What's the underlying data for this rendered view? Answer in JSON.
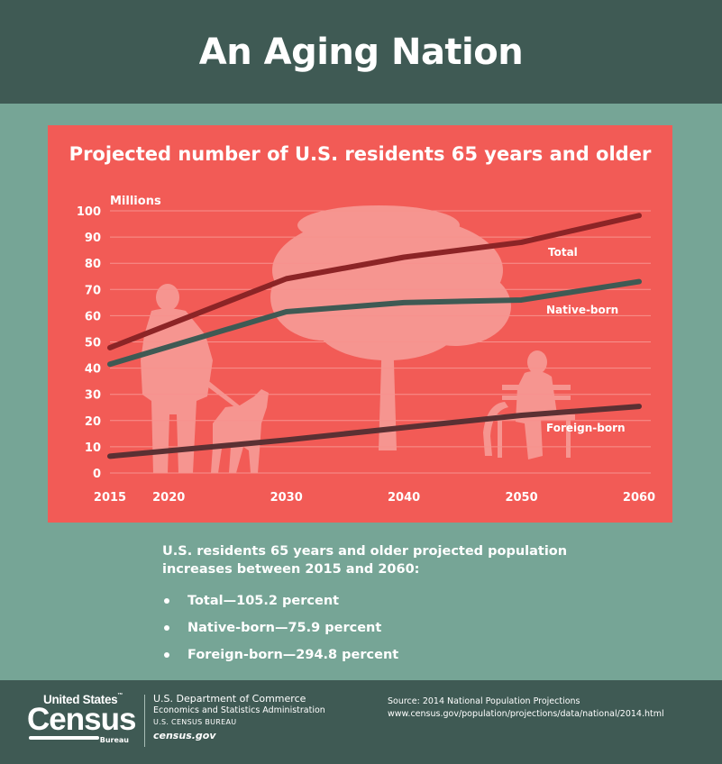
{
  "header": {
    "title": "An Aging Nation"
  },
  "chart_data": {
    "type": "line",
    "title": "Projected number of U.S. residents 65 years and older",
    "ylabel": "Millions",
    "xlabel": "",
    "x": [
      2015,
      2030,
      2040,
      2050,
      2060
    ],
    "x_ticks": [
      "2015",
      "2020",
      "2030",
      "2040",
      "2050",
      "2060"
    ],
    "x_tick_values": [
      2015,
      2020,
      2030,
      2040,
      2050,
      2060
    ],
    "y_ticks": [
      "0",
      "10",
      "20",
      "30",
      "40",
      "50",
      "60",
      "70",
      "80",
      "90",
      "100"
    ],
    "ylim": [
      0,
      100
    ],
    "xlim": [
      2015,
      2060
    ],
    "grid": true,
    "legend": "inline labels at right",
    "series": [
      {
        "name": "Total",
        "values": [
          47.8,
          74.1,
          82.3,
          88.0,
          98.2
        ],
        "color": "#8c2426"
      },
      {
        "name": "Native-born",
        "values": [
          41.5,
          61.5,
          65.0,
          66.0,
          73.0
        ],
        "color": "#3f5a54"
      },
      {
        "name": "Foreign-born",
        "values": [
          6.4,
          12.6,
          17.3,
          22.0,
          25.4
        ],
        "color": "#5b3033"
      }
    ]
  },
  "summary": {
    "intro": "U.S. residents 65 years and older projected population increases between 2015 and 2060:",
    "items": [
      "Total—105.2 percent",
      "Native-born—75.9 percent",
      "Foreign-born—294.8 percent"
    ]
  },
  "footer": {
    "logo_us": "United States",
    "logo_tm": "™",
    "logo_census": "Census",
    "logo_bureau": "Bureau",
    "dept": "U.S. Department of Commerce",
    "admin": "Economics and Statistics Administration",
    "bureau": "U.S. CENSUS BUREAU",
    "site": "census.gov",
    "source_line1": "Source: 2014 National Population Projections",
    "source_line2": "www.census.gov/population/projections/data/national/2014.html"
  },
  "colors": {
    "header_bg": "#3f5a54",
    "page_bg": "#76a596",
    "chart_bg": "#f25b56",
    "illustration": "#f7a09b"
  },
  "icons": [
    "man-with-dog-silhouette-icon",
    "tree-silhouette-icon",
    "person-on-bench-silhouette-icon"
  ]
}
